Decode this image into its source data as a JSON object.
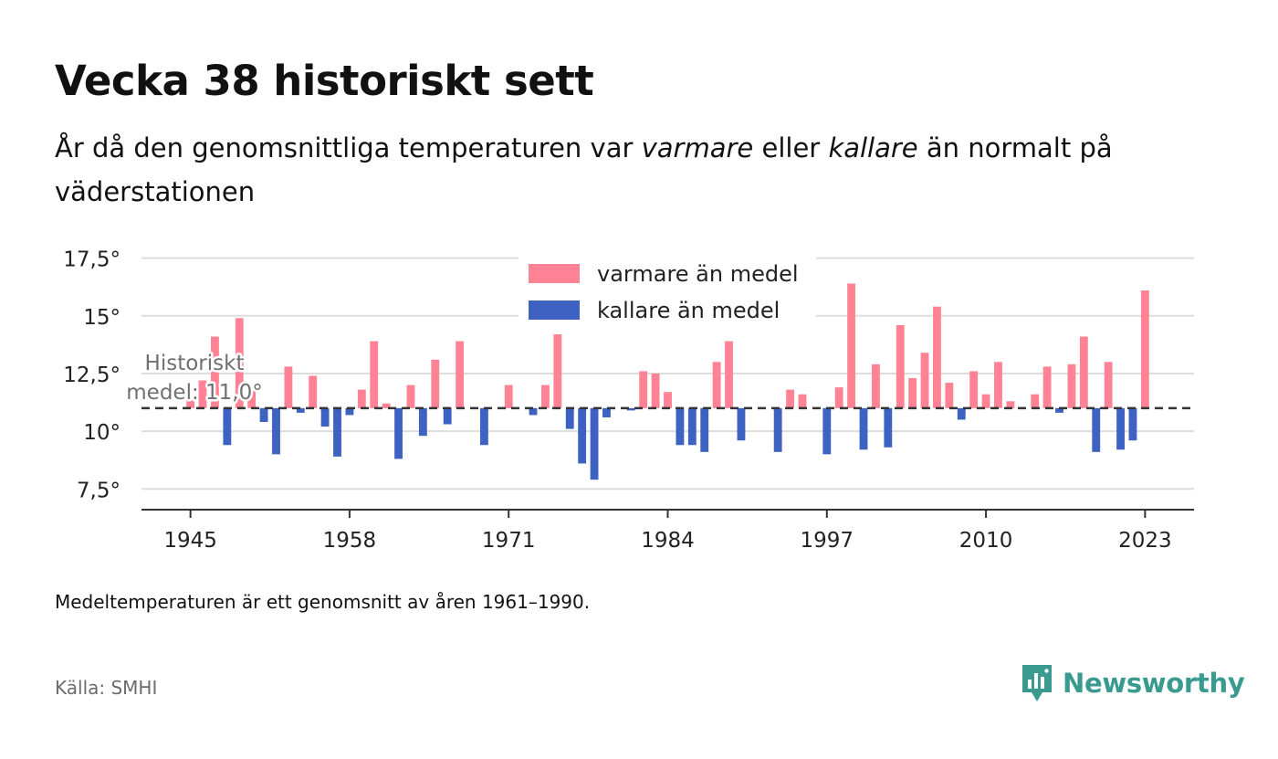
{
  "header": {
    "title": "Vecka 38 historiskt sett",
    "subtitle_parts": [
      "År då den genomsnittliga temperaturen var ",
      "varmare",
      " eller ",
      "kallare",
      " än normalt på väderstationen"
    ]
  },
  "chart_data": {
    "type": "bar",
    "baseline": 11.0,
    "baseline_label_lines": [
      "Historiskt",
      "medel: 11,0°"
    ],
    "ylim": [
      6.6,
      18.0
    ],
    "yticks": [
      7.5,
      10,
      12.5,
      15,
      17.5
    ],
    "ytick_labels": [
      "7,5°",
      "10°",
      "12,5°",
      "15°",
      "17,5°"
    ],
    "xticks": [
      1945,
      1958,
      1971,
      1984,
      1997,
      2010,
      2023
    ],
    "xtick_labels": [
      "1945",
      "1958",
      "1971",
      "1984",
      "1997",
      "2010",
      "2023"
    ],
    "x_range": [
      1941,
      2027
    ],
    "legend": {
      "placement": "top-center",
      "warm_label": "varmare än medel",
      "cold_label": "kallare än medel"
    },
    "colors": {
      "warm": "#ff8394",
      "cold": "#3d62c1",
      "baseline": "#333333",
      "grid": "#dddddd",
      "axis": "#333333"
    },
    "x": [
      1945,
      1946,
      1947,
      1948,
      1949,
      1950,
      1951,
      1952,
      1953,
      1954,
      1955,
      1956,
      1957,
      1958,
      1959,
      1960,
      1961,
      1962,
      1963,
      1964,
      1965,
      1966,
      1967,
      1968,
      1969,
      1970,
      1971,
      1972,
      1973,
      1974,
      1975,
      1976,
      1977,
      1978,
      1979,
      1980,
      1981,
      1982,
      1983,
      1984,
      1985,
      1986,
      1987,
      1988,
      1989,
      1990,
      1991,
      1992,
      1993,
      1994,
      1995,
      1996,
      1997,
      1998,
      1999,
      2000,
      2001,
      2002,
      2003,
      2004,
      2005,
      2006,
      2007,
      2008,
      2009,
      2010,
      2011,
      2012,
      2013,
      2014,
      2015,
      2016,
      2017,
      2018,
      2019,
      2020,
      2021,
      2022,
      2023
    ],
    "values": [
      11.4,
      12.2,
      14.1,
      9.4,
      14.9,
      11.8,
      10.4,
      9.0,
      12.8,
      10.8,
      12.4,
      10.2,
      8.9,
      10.7,
      11.8,
      13.9,
      11.2,
      8.8,
      12.0,
      9.8,
      13.1,
      10.3,
      13.9,
      11.0,
      9.4,
      11.0,
      12.0,
      11.0,
      10.7,
      12.0,
      14.2,
      10.1,
      8.6,
      7.9,
      10.6,
      11.0,
      10.9,
      12.6,
      12.5,
      11.7,
      9.4,
      9.4,
      9.1,
      13.0,
      13.9,
      9.6,
      11.0,
      11.0,
      9.1,
      11.8,
      11.6,
      11.0,
      9.0,
      11.9,
      16.4,
      9.2,
      12.9,
      9.3,
      14.6,
      12.3,
      13.4,
      15.4,
      12.1,
      10.5,
      12.6,
      11.6,
      13.0,
      11.3,
      11.0,
      11.6,
      12.8,
      10.8,
      12.9,
      14.1,
      9.1,
      13.0,
      9.2,
      9.6,
      16.1
    ]
  },
  "footer": {
    "note": "Medeltemperaturen är ett genomsnitt av åren 1961–1990.",
    "source": "Källa: SMHI",
    "logo_text": "Newsworthy"
  }
}
